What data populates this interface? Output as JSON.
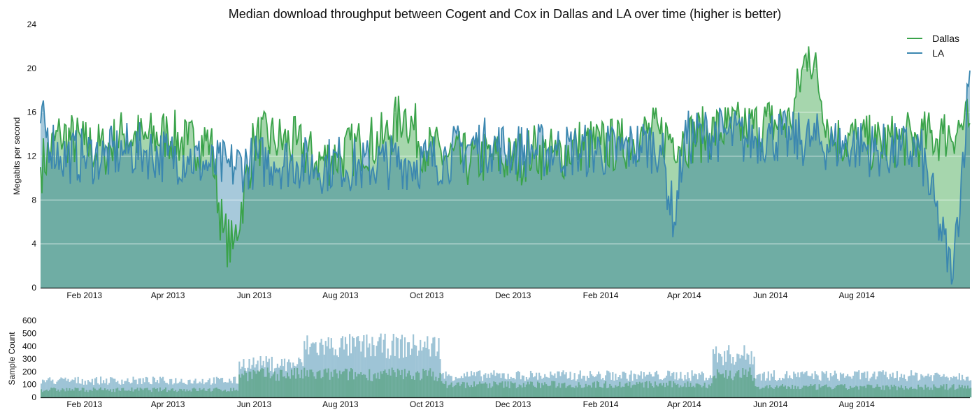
{
  "chart_data": [
    {
      "type": "area",
      "title": "Median download throughput between Cogent and Cox in Dallas and LA over time (higher is better)",
      "ylabel": "Megabits per second",
      "xlabel": "",
      "x_range": [
        "2013-01-01",
        "2014-10-20"
      ],
      "ylim": [
        0,
        24
      ],
      "yticks": [
        0,
        4,
        8,
        12,
        16,
        20,
        24
      ],
      "xticks": [
        "Feb 2013",
        "Apr 2013",
        "Jun 2013",
        "Aug 2013",
        "Oct 2013",
        "Dec 2013",
        "Feb 2014",
        "Apr 2014",
        "Jun 2014",
        "Aug 2014"
      ],
      "grid": true,
      "legend_position": "top-right",
      "series": [
        {
          "name": "Dallas",
          "color": "#3aa34a",
          "points": [
            [
              "2013-01-01",
              11
            ],
            [
              "2013-01-15",
              14
            ],
            [
              "2013-02-01",
              13
            ],
            [
              "2013-02-15",
              12.5
            ],
            [
              "2013-03-01",
              14
            ],
            [
              "2013-03-15",
              13.5
            ],
            [
              "2013-04-01",
              14
            ],
            [
              "2013-04-15",
              13
            ],
            [
              "2013-05-01",
              13.5
            ],
            [
              "2013-05-10",
              5
            ],
            [
              "2013-05-17",
              3.5
            ],
            [
              "2013-06-01",
              13.5
            ],
            [
              "2013-06-15",
              13.5
            ],
            [
              "2013-07-01",
              13
            ],
            [
              "2013-07-15",
              11.5
            ],
            [
              "2013-08-01",
              12
            ],
            [
              "2013-08-15",
              13
            ],
            [
              "2013-09-01",
              13.5
            ],
            [
              "2013-09-15",
              16
            ],
            [
              "2013-10-01",
              12.5
            ],
            [
              "2013-10-15",
              12
            ],
            [
              "2013-11-01",
              11.5
            ],
            [
              "2013-11-15",
              12
            ],
            [
              "2013-12-01",
              11.5
            ],
            [
              "2013-12-15",
              12.5
            ],
            [
              "2014-01-01",
              12
            ],
            [
              "2014-01-15",
              13
            ],
            [
              "2014-02-01",
              13
            ],
            [
              "2014-02-15",
              13
            ],
            [
              "2014-03-01",
              14
            ],
            [
              "2014-03-15",
              14
            ],
            [
              "2014-04-01",
              13.5
            ],
            [
              "2014-04-15",
              14
            ],
            [
              "2014-05-01",
              14.5
            ],
            [
              "2014-05-15",
              14.5
            ],
            [
              "2014-06-01",
              15
            ],
            [
              "2014-06-15",
              15
            ],
            [
              "2014-06-28",
              22
            ],
            [
              "2014-07-15",
              13.5
            ],
            [
              "2014-08-01",
              13.5
            ],
            [
              "2014-08-15",
              13
            ],
            [
              "2014-09-01",
              13.5
            ],
            [
              "2014-09-15",
              13.5
            ],
            [
              "2014-10-01",
              14
            ],
            [
              "2014-10-20",
              15
            ]
          ]
        },
        {
          "name": "LA",
          "color": "#3b87b0",
          "points": [
            [
              "2013-01-01",
              15
            ],
            [
              "2013-01-15",
              12
            ],
            [
              "2013-02-01",
              12
            ],
            [
              "2013-02-15",
              12
            ],
            [
              "2013-03-01",
              12.5
            ],
            [
              "2013-03-15",
              12.5
            ],
            [
              "2013-04-01",
              12
            ],
            [
              "2013-04-15",
              12
            ],
            [
              "2013-05-01",
              11
            ],
            [
              "2013-05-15",
              11
            ],
            [
              "2013-06-01",
              11.5
            ],
            [
              "2013-06-15",
              11.5
            ],
            [
              "2013-07-01",
              11.5
            ],
            [
              "2013-07-15",
              11
            ],
            [
              "2013-08-01",
              11.5
            ],
            [
              "2013-08-15",
              11
            ],
            [
              "2013-09-01",
              11.5
            ],
            [
              "2013-09-15",
              11.5
            ],
            [
              "2013-10-01",
              11.5
            ],
            [
              "2013-10-15",
              12
            ],
            [
              "2013-11-01",
              13
            ],
            [
              "2013-11-15",
              13
            ],
            [
              "2013-12-01",
              12.5
            ],
            [
              "2013-12-15",
              12.5
            ],
            [
              "2014-01-01",
              12.5
            ],
            [
              "2014-01-15",
              12.5
            ],
            [
              "2014-02-01",
              12.5
            ],
            [
              "2014-02-15",
              12.5
            ],
            [
              "2014-03-01",
              13
            ],
            [
              "2014-03-15",
              13
            ],
            [
              "2014-03-25",
              6
            ],
            [
              "2014-04-01",
              13.5
            ],
            [
              "2014-04-15",
              14
            ],
            [
              "2014-05-01",
              14
            ],
            [
              "2014-05-15",
              13.5
            ],
            [
              "2014-06-01",
              14
            ],
            [
              "2014-06-15",
              13.5
            ],
            [
              "2014-07-01",
              13.5
            ],
            [
              "2014-07-15",
              13
            ],
            [
              "2014-08-01",
              13
            ],
            [
              "2014-08-15",
              12.5
            ],
            [
              "2014-09-01",
              12.5
            ],
            [
              "2014-09-15",
              12.5
            ],
            [
              "2014-10-08",
              0.8
            ],
            [
              "2014-10-20",
              19.8
            ]
          ]
        }
      ]
    },
    {
      "type": "bar",
      "ylabel": "Sample Count",
      "xlabel": "",
      "x_range": [
        "2013-01-01",
        "2014-10-20"
      ],
      "ylim": [
        0,
        650
      ],
      "yticks": [
        0,
        100,
        200,
        300,
        400,
        500,
        600
      ],
      "xticks": [
        "Feb 2013",
        "Apr 2013",
        "Jun 2013",
        "Aug 2013",
        "Oct 2013",
        "Dec 2013",
        "Feb 2014",
        "Apr 2014",
        "Jun 2014",
        "Aug 2014"
      ],
      "series": [
        {
          "name": "LA",
          "color": "#9ec4d6",
          "segments": [
            {
              "from": "2013-01-01",
              "to": "2013-05-20",
              "approx": 130
            },
            {
              "from": "2013-05-21",
              "to": "2013-07-05",
              "approx": 260
            },
            {
              "from": "2013-07-06",
              "to": "2013-10-10",
              "approx": 400
            },
            {
              "from": "2013-10-11",
              "to": "2014-04-20",
              "approx": 170
            },
            {
              "from": "2014-04-21",
              "to": "2014-05-20",
              "approx": 330
            },
            {
              "from": "2014-05-21",
              "to": "2014-10-20",
              "approx": 170
            }
          ]
        },
        {
          "name": "Dallas",
          "color": "#6aab97",
          "segments": [
            {
              "from": "2013-01-01",
              "to": "2013-05-20",
              "approx": 60
            },
            {
              "from": "2013-05-21",
              "to": "2013-10-10",
              "approx": 180
            },
            {
              "from": "2013-10-11",
              "to": "2014-04-20",
              "approx": 100
            },
            {
              "from": "2014-04-21",
              "to": "2014-05-20",
              "approx": 180
            },
            {
              "from": "2014-05-21",
              "to": "2014-10-20",
              "approx": 80
            }
          ]
        }
      ]
    }
  ]
}
